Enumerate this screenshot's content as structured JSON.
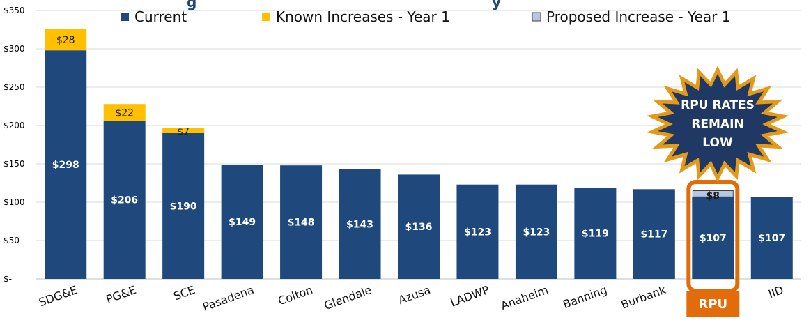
{
  "colors": {
    "current": "#1f497d",
    "known": "#ffc000",
    "proposed": "#b8c7e0",
    "highlight": "#e36c0a",
    "grid": "#d9d9d9",
    "star_fill": "#1f3864",
    "star_stroke": "#e39a1a"
  },
  "header": {
    "title_left": "g",
    "title_right": "y"
  },
  "legend": {
    "current": "Current",
    "known": "Known Increases - Year 1",
    "proposed": "Proposed Increase - Year 1"
  },
  "callout": {
    "lines": [
      "RPU RATES",
      "REMAIN",
      "LOW"
    ]
  },
  "chart_data": {
    "type": "bar",
    "stacked": true,
    "categories": [
      "SDG&E",
      "PG&E",
      "SCE",
      "Pasadena",
      "Colton",
      "Glendale",
      "Azusa",
      "LADWP",
      "Anaheim",
      "Banning",
      "Burbank",
      "RPU",
      "IID"
    ],
    "series": [
      {
        "name": "Current",
        "values": [
          298,
          206,
          190,
          149,
          148,
          143,
          136,
          123,
          123,
          119,
          117,
          107,
          107
        ]
      },
      {
        "name": "Known Increases - Year 1",
        "values": [
          28,
          22,
          7,
          0,
          0,
          0,
          0,
          0,
          0,
          0,
          0,
          0,
          0
        ]
      },
      {
        "name": "Proposed Increase - Year 1",
        "values": [
          0,
          0,
          0,
          0,
          0,
          0,
          0,
          0,
          0,
          0,
          0,
          8,
          0
        ]
      }
    ],
    "value_labels": {
      "current": [
        "$298",
        "$206",
        "$190",
        "$149",
        "$148",
        "$143",
        "$136",
        "$123",
        "$123",
        "$119",
        "$117",
        "$107",
        "$107"
      ],
      "known": [
        "$28",
        "$22",
        "$7",
        "",
        "",
        "",
        "",
        "",
        "",
        "",
        "",
        "",
        ""
      ],
      "proposed": [
        "",
        "",
        "",
        "",
        "",
        "",
        "",
        "",
        "",
        "",
        "",
        "$8",
        ""
      ]
    },
    "ylim": [
      0,
      350
    ],
    "yticks": [
      0,
      50,
      100,
      150,
      200,
      250,
      300,
      350
    ],
    "ytick_labels": [
      "$-",
      "$50",
      "$100",
      "$150",
      "$200",
      "$250",
      "$300",
      "$350"
    ],
    "highlight_category": "RPU",
    "grid": true,
    "legend_position": "top"
  }
}
